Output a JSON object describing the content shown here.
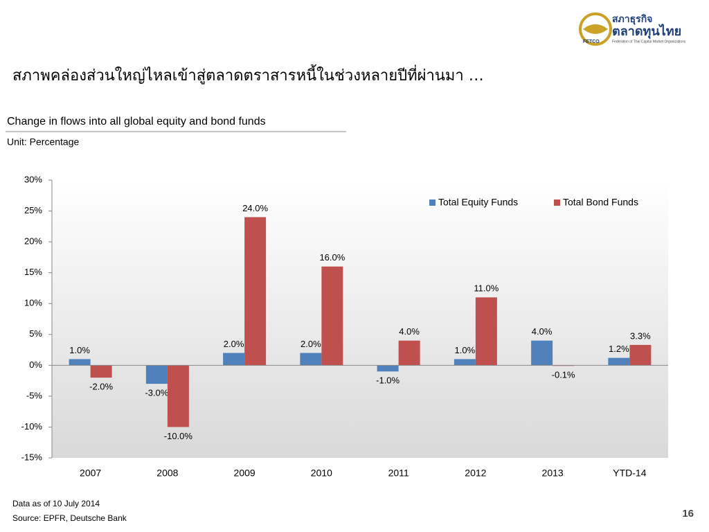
{
  "header": {
    "title": "สภาพคล่องส่วนใหญ่ไหลเข้าสู่ตลาดตราสารหนี้ในช่วงหลายปีที่ผ่านมา …"
  },
  "logo": {
    "thai_top": "สภาธุรกิจ",
    "thai_main": "ตลาดทุนไทย",
    "abbr": "FETCO",
    "tagline": "Federation of Thai Capital Market Organizations"
  },
  "chart_data": {
    "type": "bar",
    "title": "Change in flows into all global equity and bond funds",
    "subtitle": "Unit: Percentage",
    "categories": [
      "2007",
      "2008",
      "2009",
      "2010",
      "2011",
      "2012",
      "2013",
      "YTD-14"
    ],
    "series": [
      {
        "name": "Total Equity Funds",
        "color": "#4f81bd",
        "values": [
          1.0,
          -3.0,
          2.0,
          2.0,
          -1.0,
          1.0,
          4.0,
          1.2
        ],
        "value_labels": [
          "1.0%",
          "-3.0%",
          "2.0%",
          "2.0%",
          "-1.0%",
          "1.0%",
          "4.0%",
          "1.2%"
        ]
      },
      {
        "name": "Total Bond Funds",
        "color": "#c0504d",
        "values": [
          -2.0,
          -10.0,
          24.0,
          16.0,
          4.0,
          11.0,
          -0.1,
          3.3
        ],
        "value_labels": [
          "-2.0%",
          "-10.0%",
          "24.0%",
          "16.0%",
          "4.0%",
          "11.0%",
          "-0.1%",
          "3.3%"
        ]
      }
    ],
    "ylim": [
      -15,
      30
    ],
    "yticks": [
      {
        "value": -15,
        "label": "-15%"
      },
      {
        "value": -10,
        "label": "-10%"
      },
      {
        "value": -5,
        "label": "-5%"
      },
      {
        "value": 0,
        "label": "0%"
      },
      {
        "value": 5,
        "label": "5%"
      },
      {
        "value": 10,
        "label": "10%"
      },
      {
        "value": 15,
        "label": "15%"
      },
      {
        "value": 20,
        "label": "20%"
      },
      {
        "value": 25,
        "label": "25%"
      },
      {
        "value": 30,
        "label": "30%"
      }
    ],
    "legend": "upper right"
  },
  "footer": {
    "notes": [
      "Data as of 10 July 2014",
      "Source: EPFR, Deutsche Bank"
    ],
    "page": "16"
  }
}
